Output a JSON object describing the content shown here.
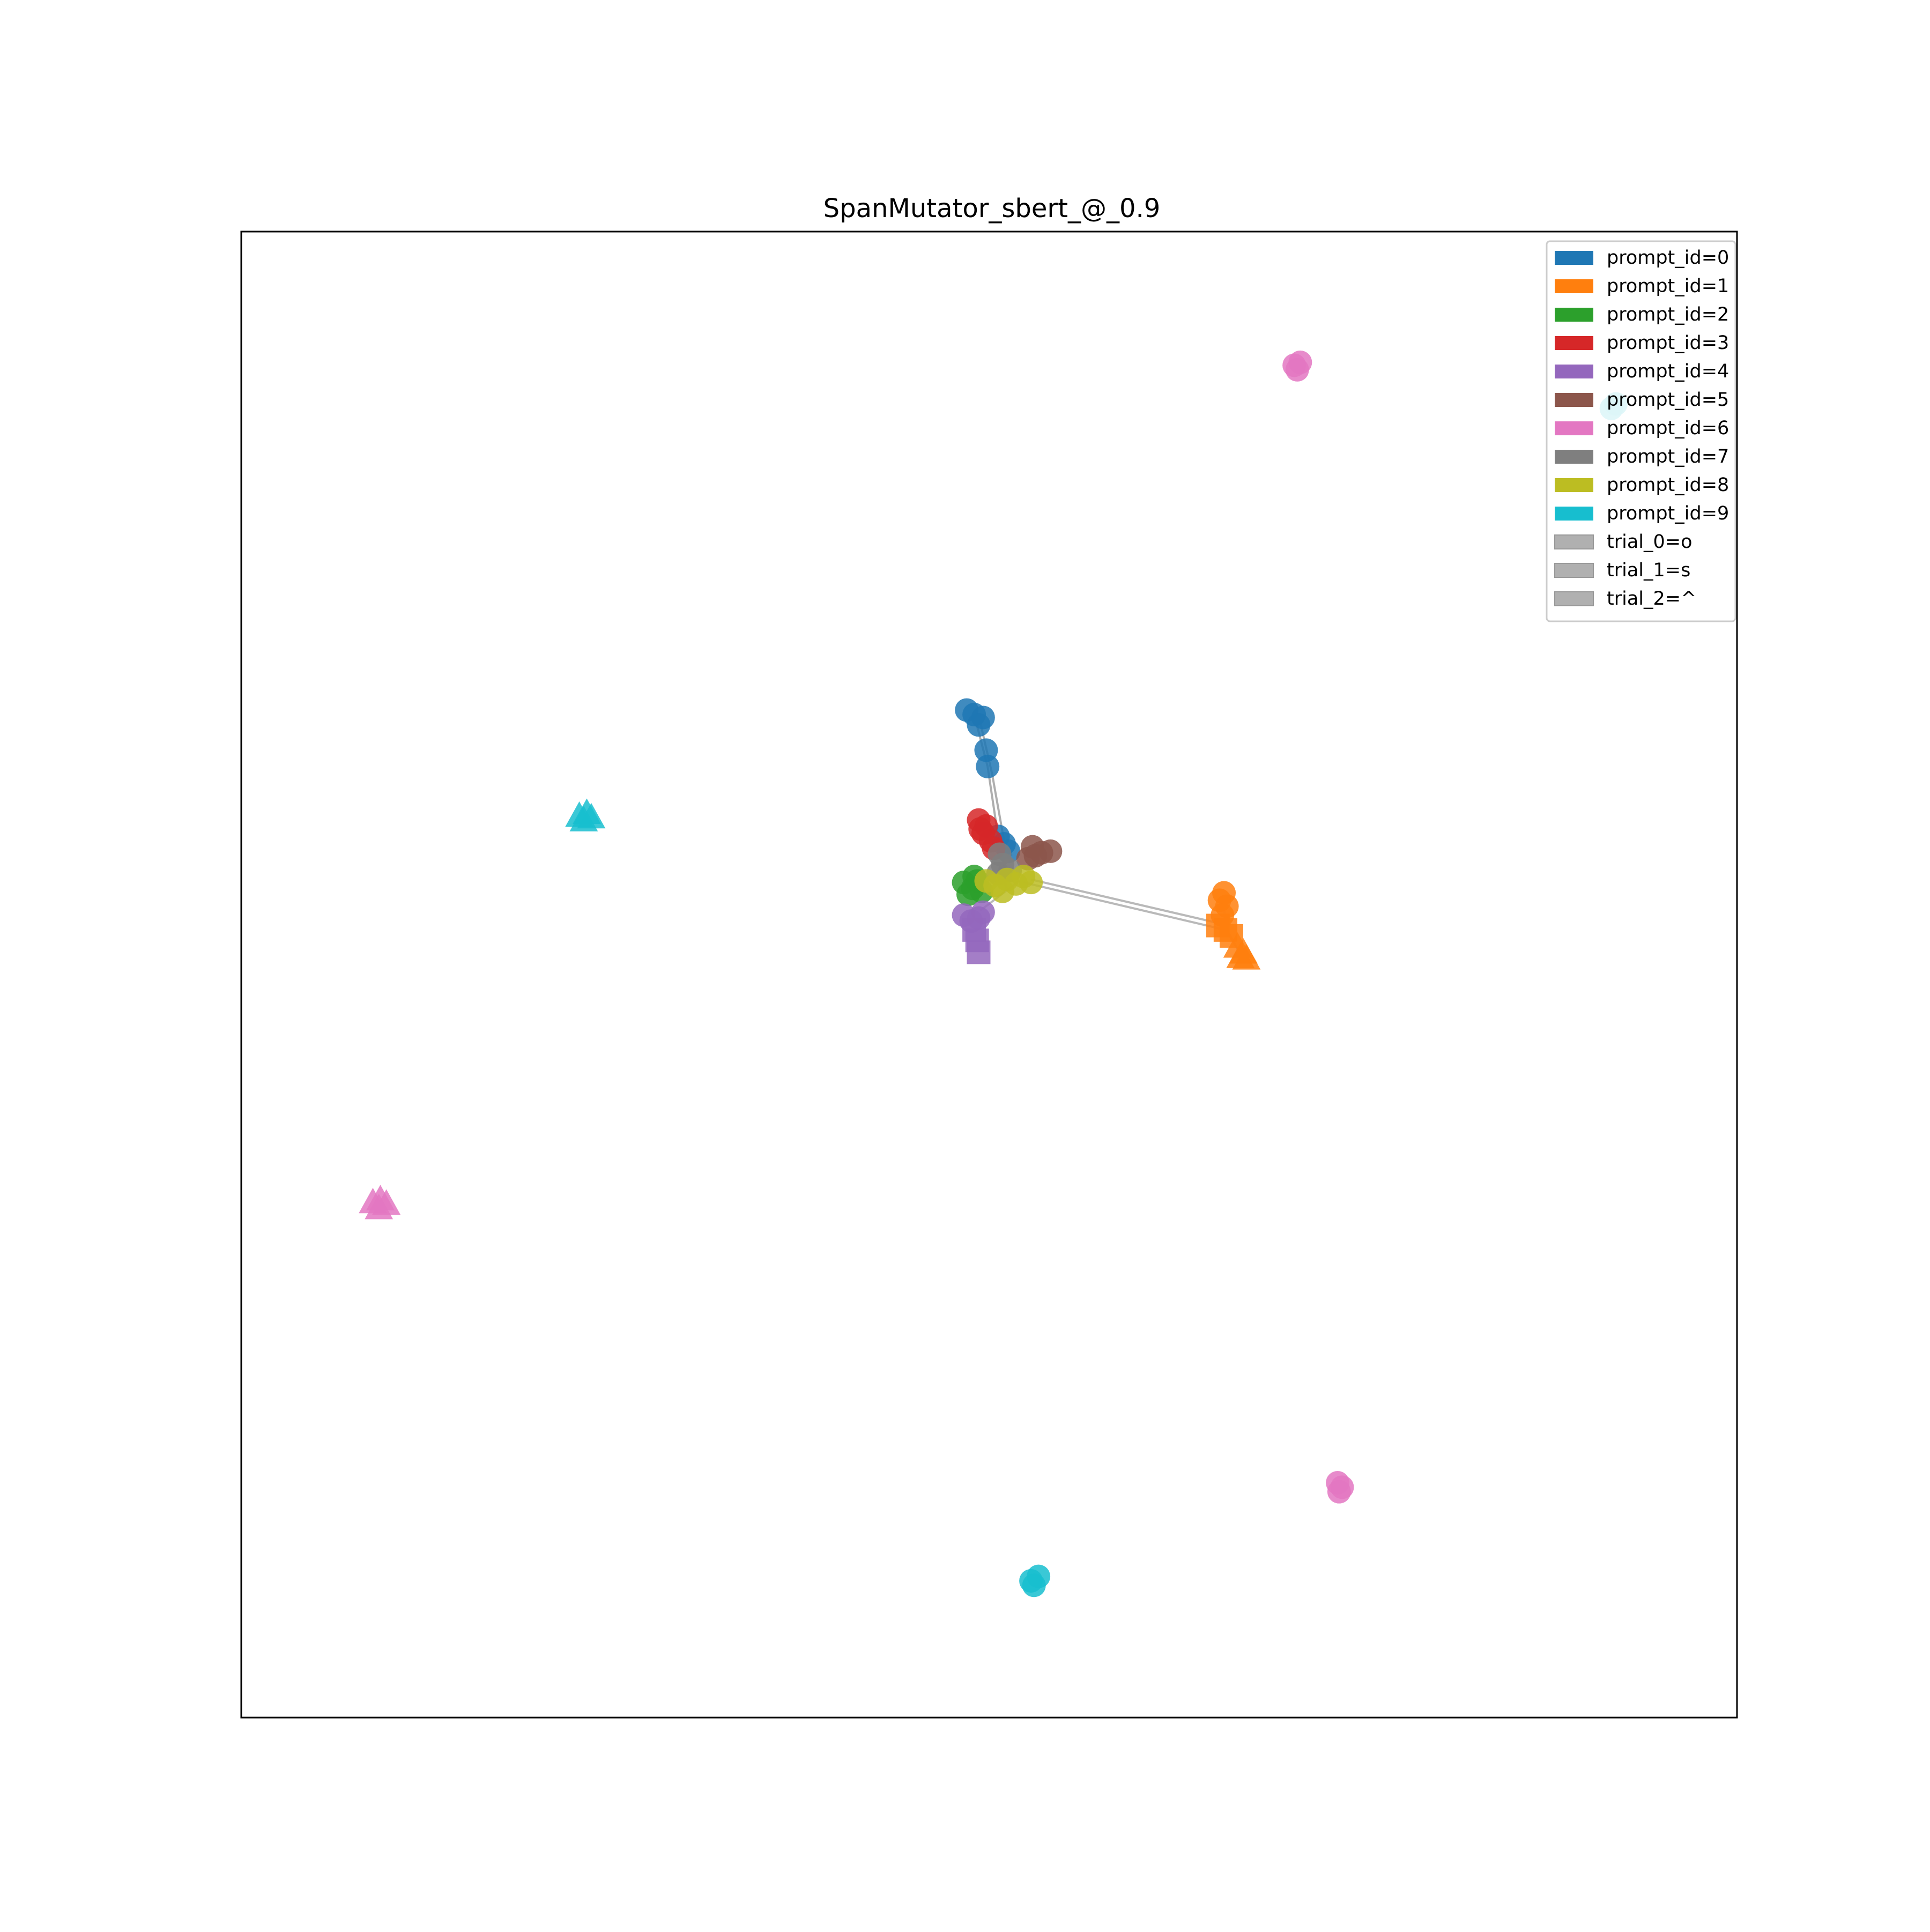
{
  "chart_data": {
    "type": "scatter",
    "title": "SpanMutator_sbert_@_0.9",
    "xlabel": "",
    "ylabel": "",
    "xlim": [
      0,
      100
    ],
    "ylim": [
      0,
      100
    ],
    "show_ticks": false,
    "grid": false,
    "legend_position": "top-right",
    "legend": [
      {
        "label": "prompt_id=0",
        "color": "#1f77b4"
      },
      {
        "label": "prompt_id=1",
        "color": "#ff7f0e"
      },
      {
        "label": "prompt_id=2",
        "color": "#2ca02c"
      },
      {
        "label": "prompt_id=3",
        "color": "#d62728"
      },
      {
        "label": "prompt_id=4",
        "color": "#9467bd"
      },
      {
        "label": "prompt_id=5",
        "color": "#8c564b"
      },
      {
        "label": "prompt_id=6",
        "color": "#e377c2"
      },
      {
        "label": "prompt_id=7",
        "color": "#7f7f7f"
      },
      {
        "label": "prompt_id=8",
        "color": "#bcbd22"
      },
      {
        "label": "prompt_id=9",
        "color": "#17becf"
      },
      {
        "label": "trial_0=o",
        "color": "#b0b0b0"
      },
      {
        "label": "trial_1=s",
        "color": "#b0b0b0"
      },
      {
        "label": "trial_2=^",
        "color": "#b0b0b0"
      }
    ],
    "series": [
      {
        "prompt_id": 0,
        "color": "#1f77b4",
        "marker": "o",
        "points": [
          [
            49.0,
            67.5
          ],
          [
            48.5,
            67.8
          ],
          [
            49.6,
            67.3
          ],
          [
            49.3,
            66.8
          ],
          [
            49.8,
            65.1
          ],
          [
            49.9,
            64.0
          ],
          [
            50.6,
            59.3
          ],
          [
            51.3,
            58.3
          ],
          [
            51.0,
            58.8
          ]
        ]
      },
      {
        "prompt_id": 1,
        "color": "#ff7f0e",
        "marker": "o",
        "points": [
          [
            65.7,
            55.5
          ],
          [
            65.4,
            55.0
          ],
          [
            65.9,
            54.6
          ],
          [
            65.6,
            54.0
          ]
        ]
      },
      {
        "prompt_id": 1,
        "color": "#ff7f0e",
        "marker": "s",
        "points": [
          [
            65.3,
            53.3
          ],
          [
            65.8,
            53.0
          ],
          [
            66.2,
            52.6
          ]
        ]
      },
      {
        "prompt_id": 1,
        "color": "#ff7f0e",
        "marker": "^",
        "points": [
          [
            66.6,
            51.9
          ],
          [
            67.0,
            51.5
          ],
          [
            66.8,
            51.2
          ],
          [
            67.2,
            51.1
          ]
        ]
      },
      {
        "prompt_id": 2,
        "color": "#2ca02c",
        "marker": "o",
        "points": [
          [
            48.3,
            56.2
          ],
          [
            48.9,
            55.8
          ],
          [
            49.2,
            56.3
          ],
          [
            48.6,
            55.4
          ],
          [
            49.5,
            55.6
          ],
          [
            49.0,
            56.6
          ]
        ]
      },
      {
        "prompt_id": 3,
        "color": "#d62728",
        "marker": "o",
        "points": [
          [
            49.3,
            60.4
          ],
          [
            49.8,
            60.0
          ],
          [
            49.6,
            59.5
          ],
          [
            50.1,
            59.0
          ],
          [
            50.3,
            58.5
          ],
          [
            49.4,
            59.8
          ]
        ]
      },
      {
        "prompt_id": 4,
        "color": "#9467bd",
        "marker": "o",
        "points": [
          [
            48.3,
            54.0
          ],
          [
            48.8,
            53.6
          ],
          [
            49.3,
            53.8
          ],
          [
            49.6,
            54.2
          ]
        ]
      },
      {
        "prompt_id": 4,
        "color": "#9467bd",
        "marker": "s",
        "points": [
          [
            49.0,
            53.0
          ],
          [
            49.2,
            52.3
          ],
          [
            49.3,
            51.5
          ]
        ]
      },
      {
        "prompt_id": 5,
        "color": "#8c564b",
        "marker": "o",
        "points": [
          [
            52.6,
            57.8
          ],
          [
            53.1,
            58.0
          ],
          [
            53.5,
            58.2
          ],
          [
            52.9,
            58.6
          ],
          [
            54.1,
            58.3
          ]
        ]
      },
      {
        "prompt_id": 6,
        "color": "#e377c2",
        "marker": "o",
        "points": [
          [
            70.4,
            91.0
          ],
          [
            70.8,
            91.2
          ],
          [
            70.6,
            90.7
          ],
          [
            73.3,
            15.8
          ],
          [
            73.6,
            15.5
          ],
          [
            73.4,
            15.2
          ]
        ]
      },
      {
        "prompt_id": 6,
        "color": "#e377c2",
        "marker": "^",
        "points": [
          [
            8.8,
            34.7
          ],
          [
            9.3,
            34.9
          ],
          [
            9.7,
            34.6
          ],
          [
            9.2,
            34.3
          ]
        ]
      },
      {
        "prompt_id": 7,
        "color": "#7f7f7f",
        "marker": "o",
        "points": [
          [
            50.6,
            56.8
          ],
          [
            50.9,
            57.4
          ],
          [
            51.4,
            57.0
          ],
          [
            50.7,
            58.1
          ]
        ]
      },
      {
        "prompt_id": 8,
        "color": "#bcbd22",
        "marker": "o",
        "points": [
          [
            50.4,
            56.0
          ],
          [
            51.2,
            56.4
          ],
          [
            51.8,
            56.1
          ],
          [
            52.3,
            56.6
          ],
          [
            52.8,
            56.2
          ],
          [
            50.9,
            55.6
          ],
          [
            49.8,
            56.3
          ]
        ]
      },
      {
        "prompt_id": 9,
        "color": "#17becf",
        "marker": "o",
        "points": [
          [
            91.9,
            88.4
          ],
          [
            91.6,
            88.1
          ],
          [
            52.8,
            9.2
          ],
          [
            53.3,
            9.5
          ],
          [
            53.0,
            8.9
          ]
        ]
      },
      {
        "prompt_id": 9,
        "color": "#17becf",
        "marker": "^",
        "points": [
          [
            22.6,
            60.7
          ],
          [
            23.1,
            60.9
          ],
          [
            23.4,
            60.6
          ],
          [
            22.9,
            60.4
          ]
        ]
      }
    ],
    "connections": [
      {
        "color": "#9a9a9a",
        "points": [
          [
            49.0,
            67.5
          ],
          [
            49.9,
            64.0
          ],
          [
            50.6,
            59.3
          ],
          [
            51.3,
            58.3
          ]
        ]
      },
      {
        "color": "#9a9a9a",
        "points": [
          [
            49.4,
            67.0
          ],
          [
            50.2,
            63.5
          ],
          [
            51.0,
            59.0
          ],
          [
            51.5,
            58.0
          ]
        ]
      },
      {
        "color": "#a8a8a8",
        "points": [
          [
            52.8,
            56.4
          ],
          [
            65.6,
            53.4
          ],
          [
            66.8,
            51.4
          ]
        ]
      },
      {
        "color": "#a8a8a8",
        "points": [
          [
            52.3,
            56.2
          ],
          [
            65.4,
            53.1
          ]
        ]
      },
      {
        "color": "#a8a8a8",
        "points": [
          [
            52.0,
            56.3
          ],
          [
            49.4,
            54.3
          ]
        ]
      },
      {
        "color": "#a8a8a8",
        "points": [
          [
            51.8,
            56.5
          ],
          [
            50.5,
            57.0
          ]
        ]
      },
      {
        "color": "#a8a8a8",
        "points": [
          [
            65.6,
            55.0
          ],
          [
            65.9,
            53.0
          ],
          [
            66.8,
            51.4
          ]
        ]
      }
    ]
  }
}
